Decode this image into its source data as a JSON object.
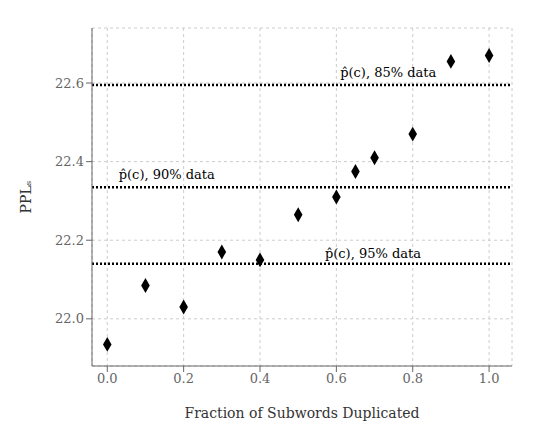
{
  "chart_data": {
    "type": "scatter",
    "xlabel": "Fraction of Subwords Duplicated",
    "ylabel": "PPLₛ",
    "x": [
      0.0,
      0.1,
      0.2,
      0.3,
      0.4,
      0.5,
      0.6,
      0.65,
      0.7,
      0.8,
      0.9,
      1.0
    ],
    "y": [
      21.935,
      22.085,
      22.03,
      22.17,
      22.15,
      22.265,
      22.31,
      22.375,
      22.41,
      22.47,
      22.655,
      22.67
    ],
    "marker": "diamond",
    "color": "black",
    "xlim": [
      -0.04,
      1.06
    ],
    "ylim": [
      21.88,
      22.74
    ],
    "xticks": [
      {
        "value": 0.0,
        "label": "0.0"
      },
      0.2,
      0.4,
      0.6,
      0.8,
      {
        "value": 1.0,
        "label": "1.0"
      }
    ],
    "yticks": [
      {
        "value": 22.0,
        "label": "22.0"
      },
      22.2,
      22.4,
      22.6
    ],
    "grid": true,
    "hlines": [
      {
        "y": 22.595,
        "label": "p̂(c), 85% data",
        "label_x": 0.61,
        "label_y": 22.615,
        "color": "black",
        "line_style": "dotted"
      },
      {
        "y": 22.335,
        "label": "p̂(c), 90% data",
        "label_x": 0.03,
        "label_y": 22.355,
        "color": "black",
        "line_style": "dotted"
      },
      {
        "y": 22.14,
        "label": "p̂(c), 95% data",
        "label_x": 0.57,
        "label_y": 22.155,
        "color": "black",
        "line_style": "dotted"
      }
    ]
  }
}
